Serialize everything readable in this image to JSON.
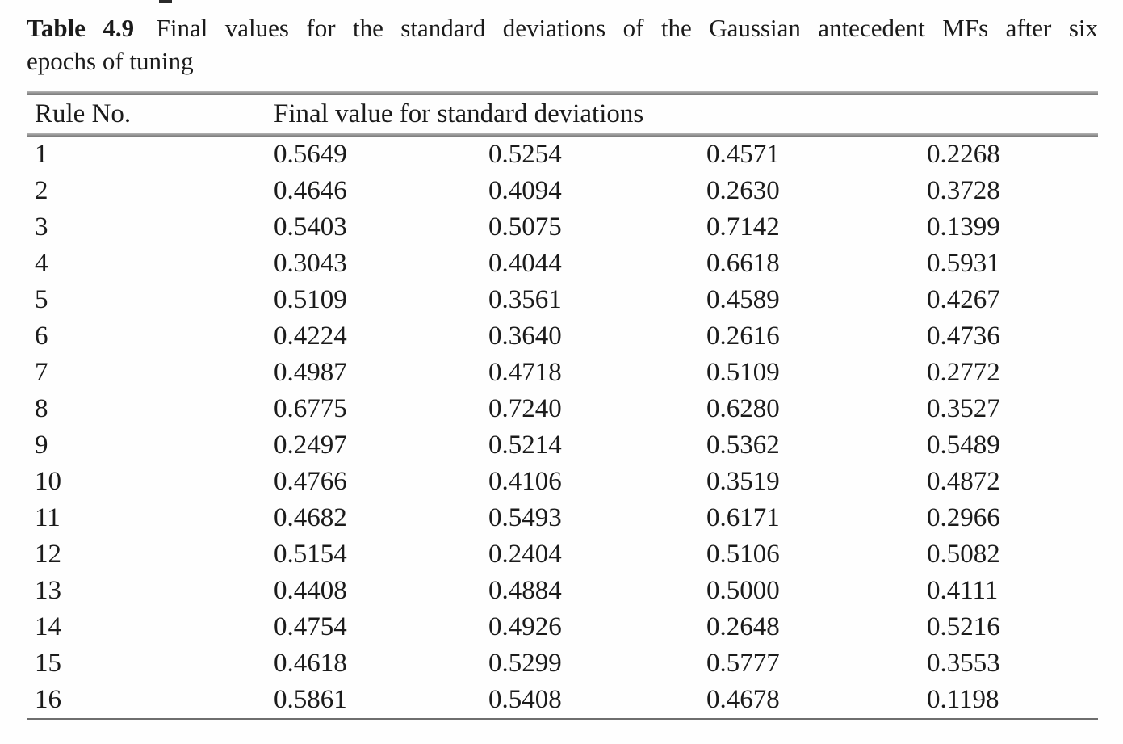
{
  "caption": {
    "label": "Table 4.9",
    "line1": "Final values for the standard deviations of the Gaussian antecedent MFs after six",
    "line2": "epochs of tuning"
  },
  "table": {
    "rule_col_header": "Rule No.",
    "values_col_header": "Final value for standard deviations",
    "rows": [
      {
        "rule": "1",
        "values": [
          "0.5649",
          "0.5254",
          "0.4571",
          "0.2268"
        ]
      },
      {
        "rule": "2",
        "values": [
          "0.4646",
          "0.4094",
          "0.2630",
          "0.3728"
        ]
      },
      {
        "rule": "3",
        "values": [
          "0.5403",
          "0.5075",
          "0.7142",
          "0.1399"
        ]
      },
      {
        "rule": "4",
        "values": [
          "0.3043",
          "0.4044",
          "0.6618",
          "0.5931"
        ]
      },
      {
        "rule": "5",
        "values": [
          "0.5109",
          "0.3561",
          "0.4589",
          "0.4267"
        ]
      },
      {
        "rule": "6",
        "values": [
          "0.4224",
          "0.3640",
          "0.2616",
          "0.4736"
        ]
      },
      {
        "rule": "7",
        "values": [
          "0.4987",
          "0.4718",
          "0.5109",
          "0.2772"
        ]
      },
      {
        "rule": "8",
        "values": [
          "0.6775",
          "0.7240",
          "0.6280",
          "0.3527"
        ]
      },
      {
        "rule": "9",
        "values": [
          "0.2497",
          "0.5214",
          "0.5362",
          "0.5489"
        ]
      },
      {
        "rule": "10",
        "values": [
          "0.4766",
          "0.4106",
          "0.3519",
          "0.4872"
        ]
      },
      {
        "rule": "11",
        "values": [
          "0.4682",
          "0.5493",
          "0.6171",
          "0.2966"
        ]
      },
      {
        "rule": "12",
        "values": [
          "0.5154",
          "0.2404",
          "0.5106",
          "0.5082"
        ]
      },
      {
        "rule": "13",
        "values": [
          "0.4408",
          "0.4884",
          "0.5000",
          "0.4111"
        ]
      },
      {
        "rule": "14",
        "values": [
          "0.4754",
          "0.4926",
          "0.2648",
          "0.5216"
        ]
      },
      {
        "rule": "15",
        "values": [
          "0.4618",
          "0.5299",
          "0.5777",
          "0.3553"
        ]
      },
      {
        "rule": "16",
        "values": [
          "0.5861",
          "0.5408",
          "0.4678",
          "0.1198"
        ]
      }
    ]
  },
  "colors": {
    "text": "#1b1b1b",
    "rule_line": "#8f8f8f",
    "background": "#fefefe"
  }
}
